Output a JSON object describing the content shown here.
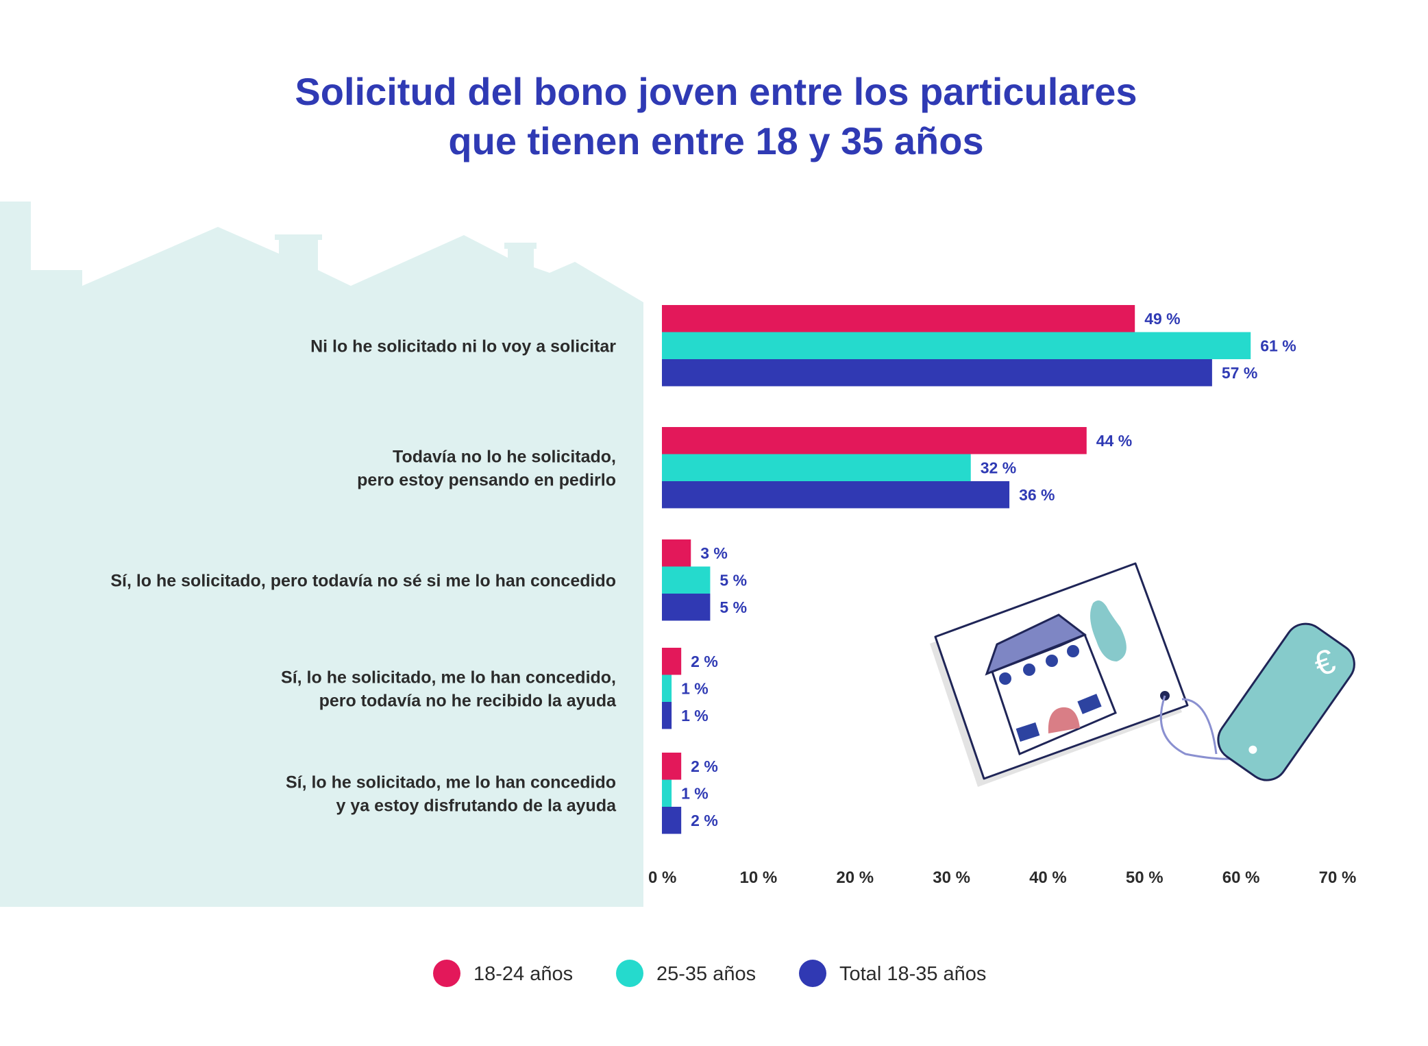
{
  "chart_data": {
    "type": "bar",
    "orientation": "horizontal",
    "title": [
      "Solicitud del bono joven entre los particulares",
      "que tienen entre 18 y 35 años"
    ],
    "categories": [
      [
        "Ni lo he solicitado ni lo voy a solicitar"
      ],
      [
        "Todavía no lo he solicitado,",
        "pero estoy pensando en pedirlo"
      ],
      [
        "Sí, lo he solicitado, pero todavía no sé si me lo han concedido"
      ],
      [
        "Sí, lo he solicitado, me lo han concedido,",
        "pero todavía no he recibido la ayuda"
      ],
      [
        "Sí, lo he solicitado, me lo han concedido",
        "y ya estoy disfrutando de la ayuda"
      ]
    ],
    "series": [
      {
        "name": "18-24 años",
        "color": "#e3185a",
        "values": [
          49,
          44,
          3,
          2,
          2
        ]
      },
      {
        "name": "25-35 años",
        "color": "#25dacd",
        "values": [
          61,
          32,
          5,
          1,
          1
        ]
      },
      {
        "name": "Total 18-35 años",
        "color": "#3039b3",
        "values": [
          57,
          36,
          5,
          1,
          2
        ]
      }
    ],
    "xlim": [
      0,
      70
    ],
    "xticks": [
      "0 %",
      "10 %",
      "20 %",
      "30 %",
      "40 %",
      "50 %",
      "60 %",
      "70 %"
    ],
    "value_suffix": " %",
    "grid": false,
    "legend": "bottom-center"
  }
}
